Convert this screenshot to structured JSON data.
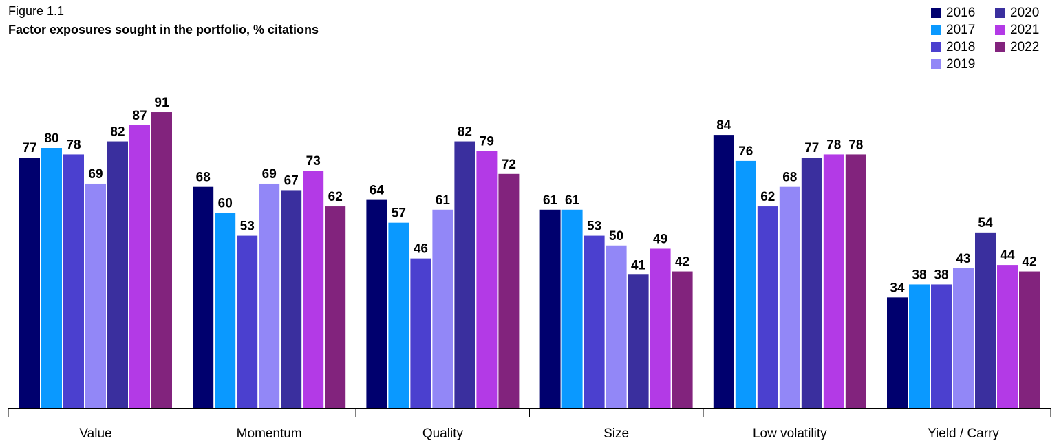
{
  "figure": {
    "label": "Figure 1.1",
    "title": "Factor exposures sought in the portfolio, % citations"
  },
  "chart_data": {
    "type": "bar",
    "title": "Factor exposures sought in the portfolio, % citations",
    "xlabel": "",
    "ylabel": "",
    "ylim": [
      0,
      100
    ],
    "grid": false,
    "legend_position": "top-right",
    "categories": [
      "Value",
      "Momentum",
      "Quality",
      "Size",
      "Low volatility",
      "Yield / Carry"
    ],
    "series": [
      {
        "name": "2016",
        "color": "#00006e",
        "values": [
          77,
          68,
          64,
          61,
          84,
          34
        ]
      },
      {
        "name": "2017",
        "color": "#0a99ff",
        "values": [
          80,
          60,
          57,
          61,
          76,
          38
        ]
      },
      {
        "name": "2018",
        "color": "#4b40cf",
        "values": [
          78,
          53,
          46,
          53,
          62,
          38
        ]
      },
      {
        "name": "2019",
        "color": "#9287f7",
        "values": [
          69,
          69,
          61,
          50,
          68,
          43
        ]
      },
      {
        "name": "2020",
        "color": "#3a2f9e",
        "values": [
          82,
          67,
          82,
          41,
          77,
          54
        ]
      },
      {
        "name": "2021",
        "color": "#b33ae6",
        "values": [
          87,
          73,
          79,
          49,
          78,
          44
        ]
      },
      {
        "name": "2022",
        "color": "#82237d",
        "values": [
          91,
          62,
          72,
          42,
          78,
          42
        ]
      }
    ]
  }
}
